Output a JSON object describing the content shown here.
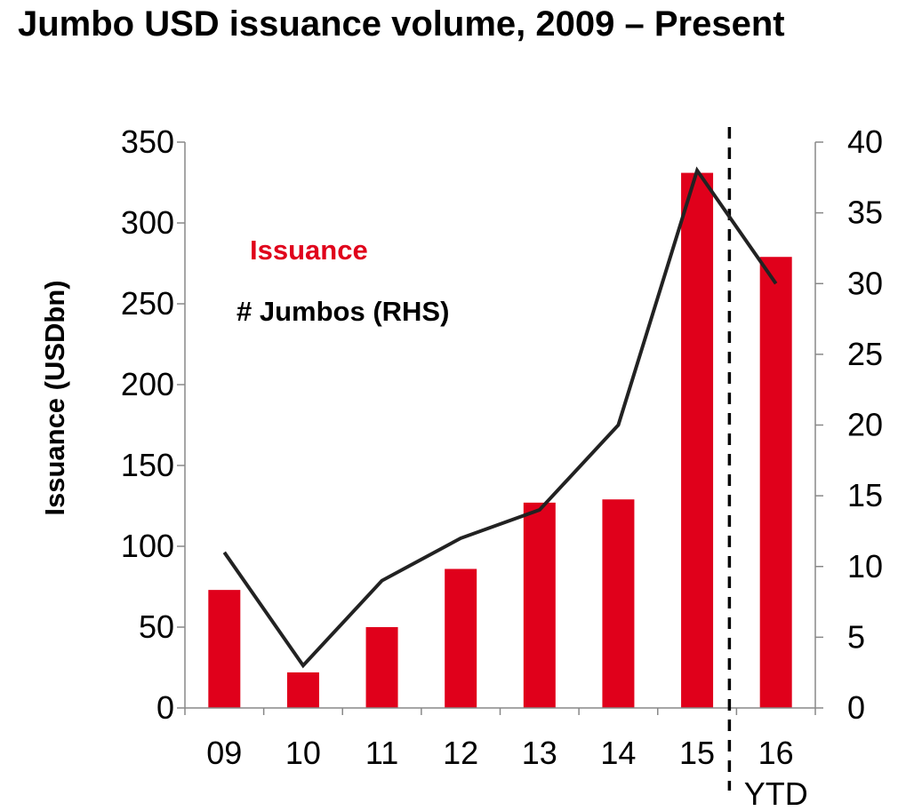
{
  "chart_data": {
    "type": "bar",
    "title": "Jumbo USD issuance volume, 2009 – Present",
    "categories": [
      "09",
      "10",
      "11",
      "12",
      "13",
      "14",
      "15",
      "16"
    ],
    "category_note": "YTD",
    "series": [
      {
        "name": "Issuance",
        "axis": "left",
        "type": "bar",
        "color": "#e0001b",
        "values": [
          73,
          22,
          50,
          86,
          127,
          129,
          331,
          279
        ]
      },
      {
        "name": "# Jumbos (RHS)",
        "axis": "right",
        "type": "line",
        "color": "#222222",
        "values": [
          11,
          3,
          9,
          12,
          14,
          20,
          38,
          30
        ]
      }
    ],
    "ylabel": "Issuance (USDbn)",
    "ylim": [
      0,
      350
    ],
    "yticks": [
      0,
      50,
      100,
      150,
      200,
      250,
      300,
      350
    ],
    "y2lim": [
      0,
      40
    ],
    "y2ticks": [
      0,
      5,
      10,
      15,
      20,
      25,
      30,
      35,
      40
    ],
    "divider": "dashed line between 15 and 16 YTD",
    "grid": false,
    "legend_position": "upper-left inside plot"
  }
}
